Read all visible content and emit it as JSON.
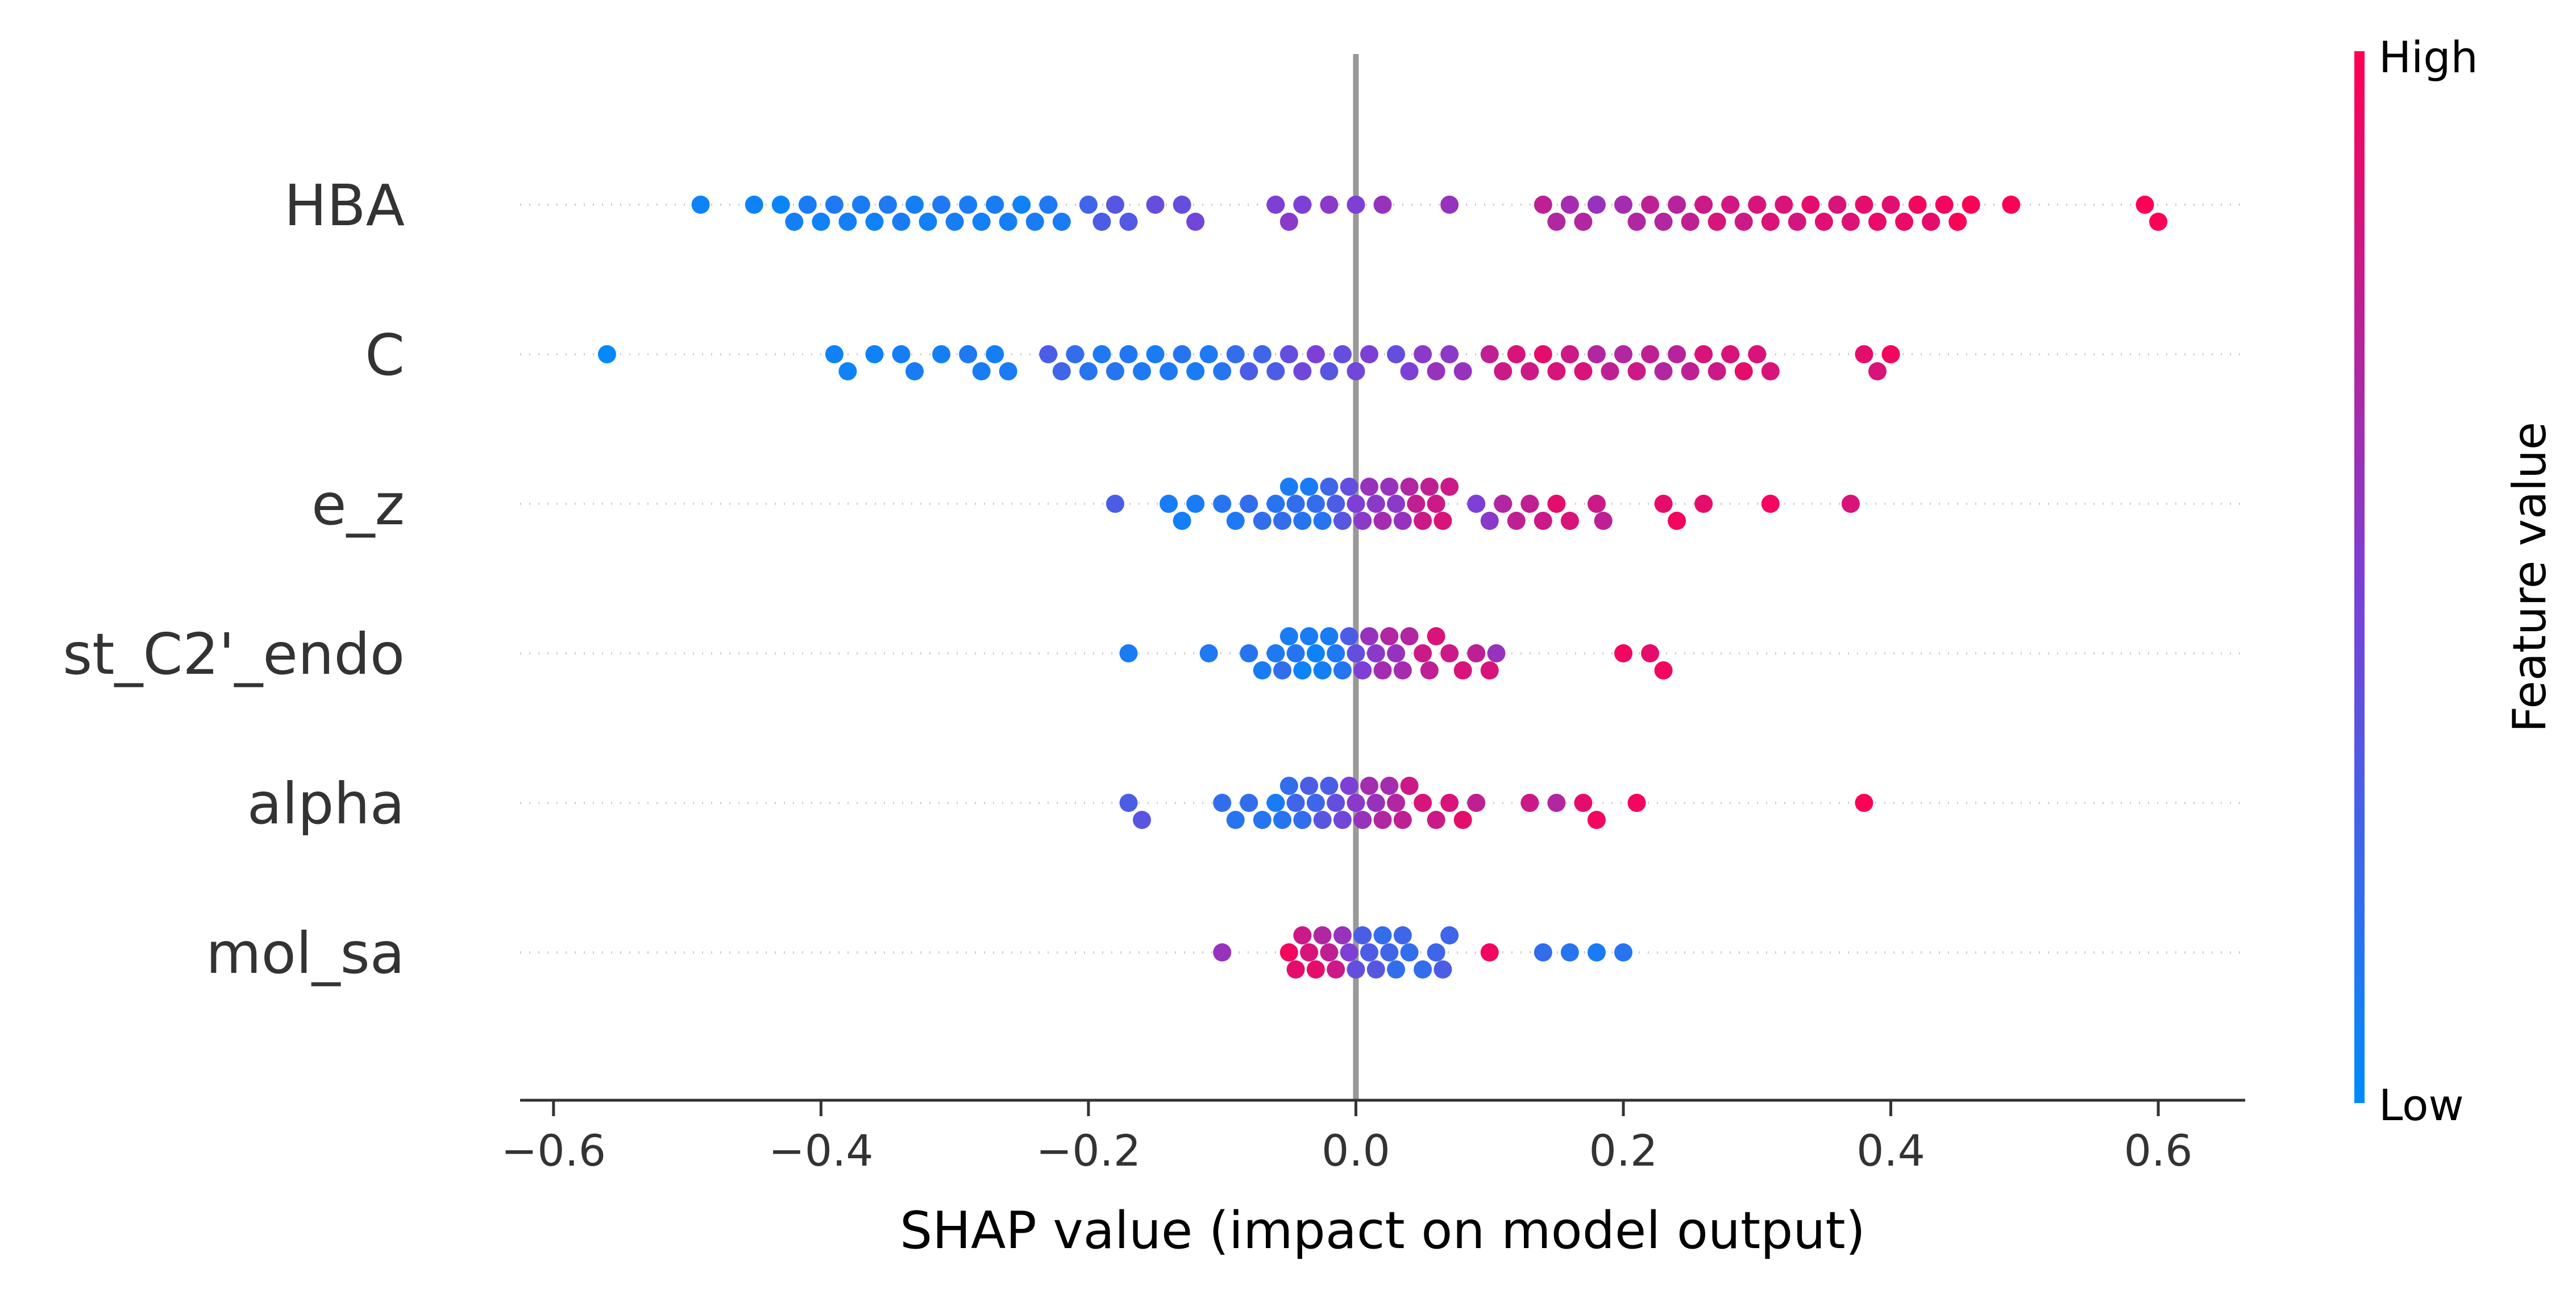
{
  "chart_data": {
    "type": "scatter",
    "subtype": "shap-beeswarm",
    "title": "",
    "xlabel": "SHAP value (impact on model output)",
    "xlim": [
      -0.625,
      0.665
    ],
    "xticks": [
      -0.6,
      -0.4,
      -0.2,
      0.0,
      0.2,
      0.4,
      0.6
    ],
    "xtick_labels": [
      "−0.6",
      "−0.4",
      "−0.2",
      "0.0",
      "0.2",
      "0.4",
      "0.6"
    ],
    "features": [
      "HBA",
      "C",
      "e_z",
      "st_C2'_endo",
      "alpha",
      "mol_sa"
    ],
    "zero_line": true,
    "colorbar": {
      "title": "Feature value",
      "high_label": "High",
      "low_label": "Low",
      "low_color": "#008bfb",
      "high_color": "#ff0052"
    },
    "series": [
      {
        "feature": "HBA",
        "points": [
          [
            -0.49,
            0.05
          ],
          [
            -0.45,
            0.05
          ],
          [
            -0.43,
            0.04
          ],
          [
            -0.42,
            0.08
          ],
          [
            -0.41,
            0.1
          ],
          [
            -0.4,
            0.06
          ],
          [
            -0.39,
            0.12
          ],
          [
            -0.38,
            0.08
          ],
          [
            -0.37,
            0.1
          ],
          [
            -0.36,
            0.06
          ],
          [
            -0.35,
            0.12
          ],
          [
            -0.34,
            0.1
          ],
          [
            -0.33,
            0.08
          ],
          [
            -0.32,
            0.07
          ],
          [
            -0.31,
            0.12
          ],
          [
            -0.3,
            0.09
          ],
          [
            -0.29,
            0.1
          ],
          [
            -0.28,
            0.07
          ],
          [
            -0.27,
            0.1
          ],
          [
            -0.26,
            0.08
          ],
          [
            -0.25,
            0.05
          ],
          [
            -0.24,
            0.1
          ],
          [
            -0.23,
            0.12
          ],
          [
            -0.22,
            0.1
          ],
          [
            -0.2,
            0.25
          ],
          [
            -0.19,
            0.3
          ],
          [
            -0.18,
            0.35
          ],
          [
            -0.17,
            0.33
          ],
          [
            -0.15,
            0.4
          ],
          [
            -0.13,
            0.4
          ],
          [
            -0.12,
            0.45
          ],
          [
            -0.06,
            0.5
          ],
          [
            -0.05,
            0.55
          ],
          [
            -0.04,
            0.5
          ],
          [
            -0.02,
            0.55
          ],
          [
            0.0,
            0.5
          ],
          [
            0.02,
            0.6
          ],
          [
            0.07,
            0.6
          ],
          [
            0.14,
            0.75
          ],
          [
            0.15,
            0.7
          ],
          [
            0.16,
            0.65
          ],
          [
            0.17,
            0.7
          ],
          [
            0.18,
            0.6
          ],
          [
            0.2,
            0.65
          ],
          [
            0.21,
            0.7
          ],
          [
            0.22,
            0.75
          ],
          [
            0.23,
            0.7
          ],
          [
            0.24,
            0.72
          ],
          [
            0.25,
            0.75
          ],
          [
            0.26,
            0.8
          ],
          [
            0.27,
            0.85
          ],
          [
            0.28,
            0.82
          ],
          [
            0.29,
            0.8
          ],
          [
            0.3,
            0.85
          ],
          [
            0.31,
            0.86
          ],
          [
            0.32,
            0.85
          ],
          [
            0.33,
            0.83
          ],
          [
            0.34,
            0.9
          ],
          [
            0.35,
            0.88
          ],
          [
            0.36,
            0.85
          ],
          [
            0.37,
            0.86
          ],
          [
            0.38,
            0.9
          ],
          [
            0.39,
            0.92
          ],
          [
            0.4,
            0.88
          ],
          [
            0.41,
            0.92
          ],
          [
            0.42,
            0.95
          ],
          [
            0.43,
            0.9
          ],
          [
            0.44,
            0.95
          ],
          [
            0.45,
            0.98
          ],
          [
            0.46,
            0.98
          ],
          [
            0.49,
            0.98
          ],
          [
            0.59,
            0.99
          ],
          [
            0.6,
            0.99
          ]
        ]
      },
      {
        "feature": "C",
        "points": [
          [
            -0.56,
            0.02
          ],
          [
            -0.39,
            0.06
          ],
          [
            -0.38,
            0.05
          ],
          [
            -0.36,
            0.06
          ],
          [
            -0.34,
            0.08
          ],
          [
            -0.33,
            0.1
          ],
          [
            -0.31,
            0.08
          ],
          [
            -0.29,
            0.12
          ],
          [
            -0.28,
            0.1
          ],
          [
            -0.27,
            0.08
          ],
          [
            -0.26,
            0.1
          ],
          [
            -0.23,
            0.3
          ],
          [
            -0.22,
            0.25
          ],
          [
            -0.21,
            0.2
          ],
          [
            -0.2,
            0.15
          ],
          [
            -0.19,
            0.12
          ],
          [
            -0.18,
            0.15
          ],
          [
            -0.17,
            0.14
          ],
          [
            -0.16,
            0.12
          ],
          [
            -0.15,
            0.1
          ],
          [
            -0.14,
            0.12
          ],
          [
            -0.13,
            0.15
          ],
          [
            -0.12,
            0.1
          ],
          [
            -0.11,
            0.12
          ],
          [
            -0.1,
            0.15
          ],
          [
            -0.09,
            0.2
          ],
          [
            -0.08,
            0.3
          ],
          [
            -0.07,
            0.25
          ],
          [
            -0.06,
            0.3
          ],
          [
            -0.05,
            0.4
          ],
          [
            -0.04,
            0.45
          ],
          [
            -0.03,
            0.5
          ],
          [
            -0.02,
            0.35
          ],
          [
            -0.01,
            0.4
          ],
          [
            0.0,
            0.45
          ],
          [
            0.01,
            0.5
          ],
          [
            0.03,
            0.4
          ],
          [
            0.04,
            0.5
          ],
          [
            0.05,
            0.55
          ],
          [
            0.06,
            0.6
          ],
          [
            0.07,
            0.55
          ],
          [
            0.08,
            0.6
          ],
          [
            0.1,
            0.75
          ],
          [
            0.11,
            0.8
          ],
          [
            0.12,
            0.85
          ],
          [
            0.13,
            0.8
          ],
          [
            0.14,
            0.9
          ],
          [
            0.15,
            0.85
          ],
          [
            0.16,
            0.8
          ],
          [
            0.17,
            0.85
          ],
          [
            0.18,
            0.7
          ],
          [
            0.19,
            0.75
          ],
          [
            0.2,
            0.7
          ],
          [
            0.21,
            0.8
          ],
          [
            0.22,
            0.75
          ],
          [
            0.23,
            0.7
          ],
          [
            0.24,
            0.72
          ],
          [
            0.25,
            0.75
          ],
          [
            0.26,
            0.85
          ],
          [
            0.27,
            0.8
          ],
          [
            0.28,
            0.85
          ],
          [
            0.29,
            0.9
          ],
          [
            0.3,
            0.85
          ],
          [
            0.31,
            0.85
          ],
          [
            0.38,
            0.9
          ],
          [
            0.39,
            0.85
          ],
          [
            0.4,
            0.95
          ]
        ]
      },
      {
        "feature": "e_z",
        "points": [
          [
            -0.18,
            0.3
          ],
          [
            -0.14,
            0.1
          ],
          [
            -0.13,
            0.08
          ],
          [
            -0.12,
            0.1
          ],
          [
            -0.1,
            0.15
          ],
          [
            -0.09,
            0.12
          ],
          [
            -0.08,
            0.2
          ],
          [
            -0.07,
            0.2
          ],
          [
            -0.06,
            0.15
          ],
          [
            -0.055,
            0.2
          ],
          [
            -0.05,
            0.1
          ],
          [
            -0.045,
            0.2
          ],
          [
            -0.04,
            0.15
          ],
          [
            -0.035,
            0.1
          ],
          [
            -0.03,
            0.2
          ],
          [
            -0.025,
            0.15
          ],
          [
            -0.02,
            0.25
          ],
          [
            -0.015,
            0.3
          ],
          [
            -0.01,
            0.35
          ],
          [
            -0.005,
            0.4
          ],
          [
            0.0,
            0.5
          ],
          [
            0.005,
            0.55
          ],
          [
            0.01,
            0.6
          ],
          [
            0.015,
            0.55
          ],
          [
            0.02,
            0.65
          ],
          [
            0.025,
            0.6
          ],
          [
            0.03,
            0.55
          ],
          [
            0.035,
            0.6
          ],
          [
            0.04,
            0.7
          ],
          [
            0.045,
            0.75
          ],
          [
            0.05,
            0.8
          ],
          [
            0.055,
            0.75
          ],
          [
            0.06,
            0.8
          ],
          [
            0.065,
            0.85
          ],
          [
            0.07,
            0.8
          ],
          [
            0.09,
            0.5
          ],
          [
            0.1,
            0.55
          ],
          [
            0.11,
            0.7
          ],
          [
            0.12,
            0.75
          ],
          [
            0.13,
            0.75
          ],
          [
            0.14,
            0.8
          ],
          [
            0.15,
            0.9
          ],
          [
            0.16,
            0.85
          ],
          [
            0.18,
            0.8
          ],
          [
            0.185,
            0.75
          ],
          [
            0.23,
            0.9
          ],
          [
            0.24,
            0.95
          ],
          [
            0.26,
            0.9
          ],
          [
            0.31,
            0.95
          ],
          [
            0.37,
            0.85
          ]
        ]
      },
      {
        "feature": "st_C2'_endo",
        "points": [
          [
            -0.17,
            0.1
          ],
          [
            -0.11,
            0.12
          ],
          [
            -0.08,
            0.15
          ],
          [
            -0.07,
            0.1
          ],
          [
            -0.06,
            0.12
          ],
          [
            -0.055,
            0.2
          ],
          [
            -0.05,
            0.1
          ],
          [
            -0.045,
            0.15
          ],
          [
            -0.04,
            0.05
          ],
          [
            -0.035,
            0.1
          ],
          [
            -0.03,
            0.05
          ],
          [
            -0.025,
            0.08
          ],
          [
            -0.02,
            0.1
          ],
          [
            -0.015,
            0.12
          ],
          [
            -0.01,
            0.15
          ],
          [
            -0.005,
            0.3
          ],
          [
            0.0,
            0.4
          ],
          [
            0.005,
            0.5
          ],
          [
            0.01,
            0.6
          ],
          [
            0.015,
            0.55
          ],
          [
            0.02,
            0.65
          ],
          [
            0.025,
            0.7
          ],
          [
            0.03,
            0.6
          ],
          [
            0.035,
            0.65
          ],
          [
            0.04,
            0.7
          ],
          [
            0.05,
            0.8
          ],
          [
            0.055,
            0.75
          ],
          [
            0.06,
            0.85
          ],
          [
            0.07,
            0.8
          ],
          [
            0.08,
            0.85
          ],
          [
            0.09,
            0.75
          ],
          [
            0.1,
            0.85
          ],
          [
            0.105,
            0.6
          ],
          [
            0.2,
            0.95
          ],
          [
            0.22,
            0.9
          ],
          [
            0.23,
            0.95
          ]
        ]
      },
      {
        "feature": "alpha",
        "points": [
          [
            -0.17,
            0.3
          ],
          [
            -0.16,
            0.35
          ],
          [
            -0.1,
            0.2
          ],
          [
            -0.09,
            0.15
          ],
          [
            -0.08,
            0.2
          ],
          [
            -0.07,
            0.15
          ],
          [
            -0.06,
            0.1
          ],
          [
            -0.055,
            0.15
          ],
          [
            -0.05,
            0.2
          ],
          [
            -0.045,
            0.25
          ],
          [
            -0.04,
            0.2
          ],
          [
            -0.035,
            0.3
          ],
          [
            -0.03,
            0.25
          ],
          [
            -0.025,
            0.35
          ],
          [
            -0.02,
            0.3
          ],
          [
            -0.015,
            0.4
          ],
          [
            -0.01,
            0.45
          ],
          [
            -0.005,
            0.5
          ],
          [
            0.0,
            0.55
          ],
          [
            0.005,
            0.6
          ],
          [
            0.01,
            0.65
          ],
          [
            0.015,
            0.6
          ],
          [
            0.02,
            0.7
          ],
          [
            0.025,
            0.65
          ],
          [
            0.03,
            0.7
          ],
          [
            0.035,
            0.75
          ],
          [
            0.04,
            0.8
          ],
          [
            0.05,
            0.85
          ],
          [
            0.06,
            0.8
          ],
          [
            0.07,
            0.85
          ],
          [
            0.08,
            0.9
          ],
          [
            0.09,
            0.75
          ],
          [
            0.13,
            0.8
          ],
          [
            0.15,
            0.7
          ],
          [
            0.17,
            0.9
          ],
          [
            0.18,
            0.95
          ],
          [
            0.21,
            0.95
          ],
          [
            0.38,
            0.98
          ]
        ]
      },
      {
        "feature": "mol_sa",
        "points": [
          [
            -0.1,
            0.6
          ],
          [
            -0.05,
            0.95
          ],
          [
            -0.045,
            0.9
          ],
          [
            -0.04,
            0.8
          ],
          [
            -0.035,
            0.85
          ],
          [
            -0.03,
            0.9
          ],
          [
            -0.025,
            0.7
          ],
          [
            -0.02,
            0.75
          ],
          [
            -0.015,
            0.8
          ],
          [
            -0.01,
            0.6
          ],
          [
            -0.005,
            0.5
          ],
          [
            0.0,
            0.4
          ],
          [
            0.005,
            0.3
          ],
          [
            0.01,
            0.3
          ],
          [
            0.015,
            0.35
          ],
          [
            0.02,
            0.2
          ],
          [
            0.025,
            0.25
          ],
          [
            0.03,
            0.2
          ],
          [
            0.035,
            0.25
          ],
          [
            0.04,
            0.2
          ],
          [
            0.05,
            0.2
          ],
          [
            0.06,
            0.25
          ],
          [
            0.065,
            0.3
          ],
          [
            0.07,
            0.25
          ],
          [
            0.1,
            0.95
          ],
          [
            0.14,
            0.2
          ],
          [
            0.16,
            0.15
          ],
          [
            0.18,
            0.1
          ],
          [
            0.2,
            0.15
          ]
        ]
      }
    ]
  }
}
